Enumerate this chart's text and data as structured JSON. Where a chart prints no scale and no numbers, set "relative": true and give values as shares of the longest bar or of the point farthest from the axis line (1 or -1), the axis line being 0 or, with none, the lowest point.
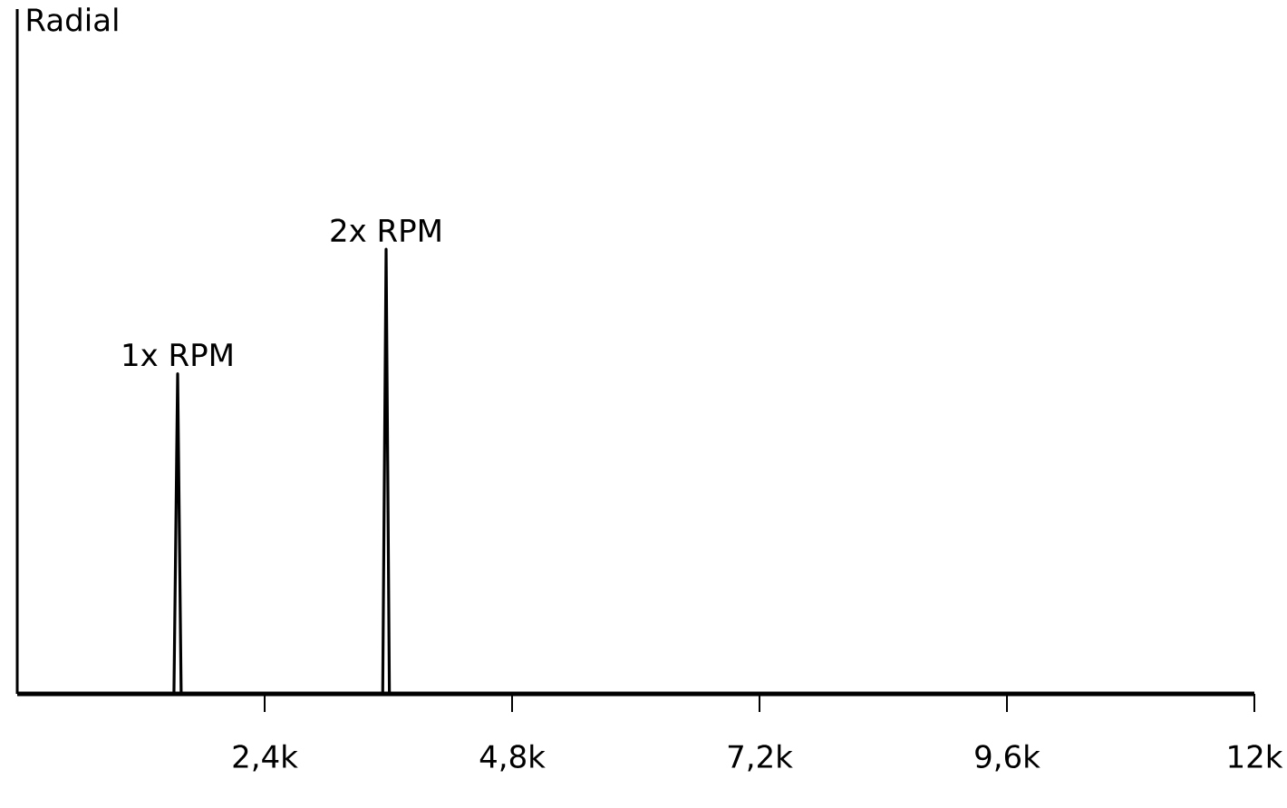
{
  "chart_data": {
    "type": "line",
    "relative": true,
    "xlim": [
      0,
      12000
    ],
    "xticks": [
      {
        "value": 2400,
        "label": "2,4k"
      },
      {
        "value": 4800,
        "label": "4,8k"
      },
      {
        "value": 7200,
        "label": "7,2k"
      },
      {
        "value": 9600,
        "label": "9,6k"
      },
      {
        "value": 12000,
        "label": "12k"
      }
    ],
    "x": [
      0,
      1520,
      1556,
      1590,
      3545,
      3578,
      3610,
      12000
    ],
    "series": [
      {
        "color": "#000000",
        "values": [
          0,
          0,
          0.72,
          0,
          0,
          1,
          0,
          0
        ]
      }
    ],
    "annotations": [
      "Radial",
      {
        "text": "1x RPM",
        "x": 1556,
        "y": 0.72
      },
      {
        "text": "2x RPM",
        "x": 3578,
        "y": 1
      }
    ]
  }
}
